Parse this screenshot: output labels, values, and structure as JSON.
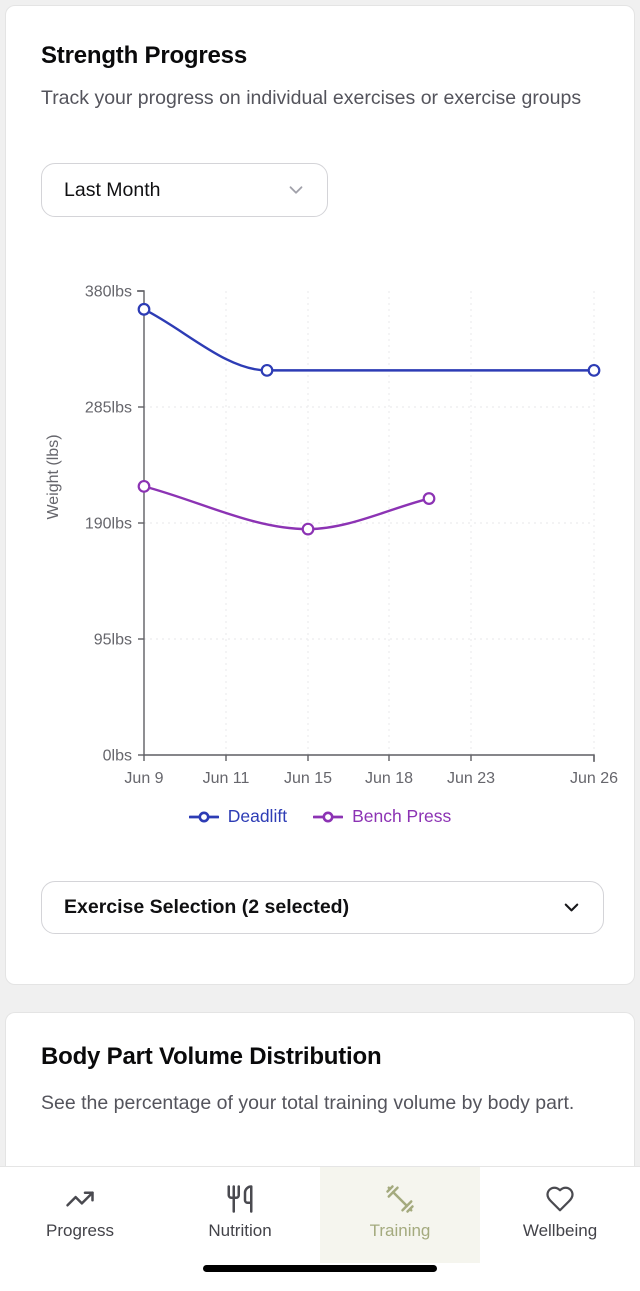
{
  "strength_card": {
    "title": "Strength Progress",
    "subtitle": "Track your progress on individual exercises or exercise groups",
    "time_range_dropdown": {
      "value": "Last Month"
    },
    "exercise_dropdown": {
      "label": "Exercise Selection (2 selected)"
    }
  },
  "chart_data": {
    "type": "line",
    "title": "",
    "xlabel": "",
    "ylabel": "Weight (lbs)",
    "ylim": [
      0,
      380
    ],
    "grid": true,
    "legend_position": "bottom",
    "y_ticks": [
      {
        "label": "0lbs",
        "value": 0
      },
      {
        "label": "95lbs",
        "value": 95
      },
      {
        "label": "190lbs",
        "value": 190
      },
      {
        "label": "285lbs",
        "value": 285
      },
      {
        "label": "380lbs",
        "value": 380
      }
    ],
    "x_ticks": [
      {
        "label": "Jun 9",
        "px": 143
      },
      {
        "label": "Jun 11",
        "px": 225
      },
      {
        "label": "Jun 15",
        "px": 307
      },
      {
        "label": "Jun 18",
        "px": 388
      },
      {
        "label": "Jun 23",
        "px": 470
      },
      {
        "label": "Jun 26",
        "px": 593
      }
    ],
    "series": [
      {
        "name": "Deadlift",
        "color": "#2d3cb5",
        "points": [
          {
            "x": "Jun 9",
            "value": 365,
            "px": 143
          },
          {
            "x": "Jun 13",
            "value": 315,
            "px": 266
          },
          {
            "x": "Jun 26",
            "value": 315,
            "px": 593
          }
        ]
      },
      {
        "name": "Bench Press",
        "color": "#8c33b4",
        "points": [
          {
            "x": "Jun 9",
            "value": 220,
            "px": 143
          },
          {
            "x": "Jun 15",
            "value": 185,
            "px": 307
          },
          {
            "x": "Jun 20",
            "value": 210,
            "px": 428
          }
        ]
      }
    ]
  },
  "bodypart_card": {
    "title": "Body Part Volume Distribution",
    "subtitle": "See the percentage of your total training volume by body part."
  },
  "tab_bar": {
    "active": "Training",
    "active_color": "#a4aa7e",
    "tabs": [
      {
        "label": "Progress",
        "icon": "trending-up-icon"
      },
      {
        "label": "Nutrition",
        "icon": "utensils-icon"
      },
      {
        "label": "Training",
        "icon": "dumbbell-icon"
      },
      {
        "label": "Wellbeing",
        "icon": "heart-icon"
      }
    ]
  }
}
